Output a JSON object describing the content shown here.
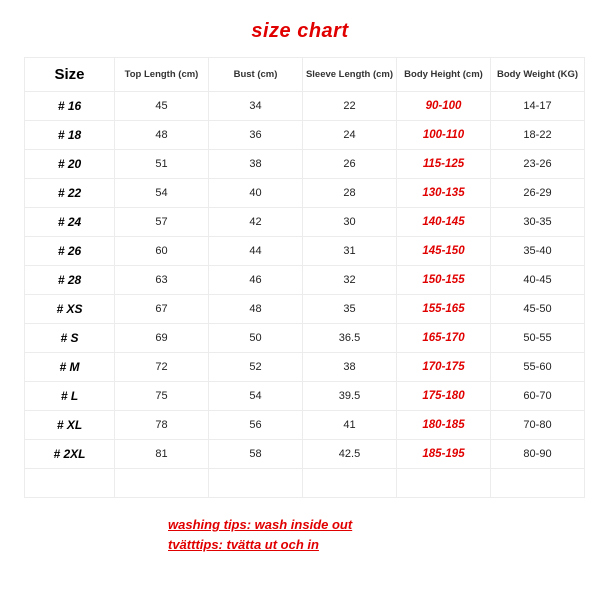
{
  "title": "size chart",
  "title_color": "#e10000",
  "title_fontsize": 20,
  "border_color": "#ececec",
  "highlight_color": "#e10000",
  "columns": [
    "Size",
    "Top Length (cm)",
    "Bust (cm)",
    "Sleeve Length (cm)",
    "Body Height (cm)",
    "Body Weight (KG)"
  ],
  "rows": [
    {
      "size": "# 16",
      "top": "45",
      "bust": "34",
      "sleeve": "22",
      "height": "90-100",
      "weight": "14-17"
    },
    {
      "size": "# 18",
      "top": "48",
      "bust": "36",
      "sleeve": "24",
      "height": "100-110",
      "weight": "18-22"
    },
    {
      "size": "# 20",
      "top": "51",
      "bust": "38",
      "sleeve": "26",
      "height": "115-125",
      "weight": "23-26"
    },
    {
      "size": "# 22",
      "top": "54",
      "bust": "40",
      "sleeve": "28",
      "height": "130-135",
      "weight": "26-29"
    },
    {
      "size": "# 24",
      "top": "57",
      "bust": "42",
      "sleeve": "30",
      "height": "140-145",
      "weight": "30-35"
    },
    {
      "size": "# 26",
      "top": "60",
      "bust": "44",
      "sleeve": "31",
      "height": "145-150",
      "weight": "35-40"
    },
    {
      "size": "# 28",
      "top": "63",
      "bust": "46",
      "sleeve": "32",
      "height": "150-155",
      "weight": "40-45"
    },
    {
      "size": "# XS",
      "top": "67",
      "bust": "48",
      "sleeve": "35",
      "height": "155-165",
      "weight": "45-50"
    },
    {
      "size": "# S",
      "top": "69",
      "bust": "50",
      "sleeve": "36.5",
      "height": "165-170",
      "weight": "50-55"
    },
    {
      "size": "# M",
      "top": "72",
      "bust": "52",
      "sleeve": "38",
      "height": "170-175",
      "weight": "55-60"
    },
    {
      "size": "# L",
      "top": "75",
      "bust": "54",
      "sleeve": "39.5",
      "height": "175-180",
      "weight": "60-70"
    },
    {
      "size": "# XL",
      "top": "78",
      "bust": "56",
      "sleeve": "41",
      "height": "180-185",
      "weight": "70-80"
    },
    {
      "size": "# 2XL",
      "top": "81",
      "bust": "58",
      "sleeve": "42.5",
      "height": "185-195",
      "weight": "80-90"
    }
  ],
  "tips": [
    "washing tips: wash inside out",
    "tvätttips: tvätta ut och in"
  ],
  "tips_color": "#e10000",
  "tips_fontsize": 13
}
